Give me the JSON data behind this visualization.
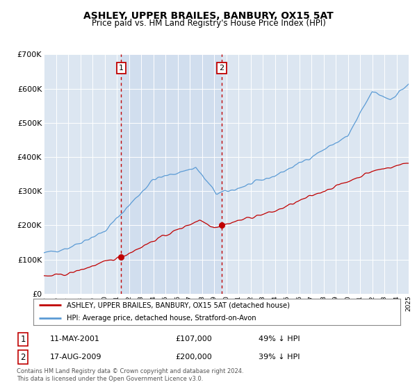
{
  "title": "ASHLEY, UPPER BRAILES, BANBURY, OX15 5AT",
  "subtitle": "Price paid vs. HM Land Registry's House Price Index (HPI)",
  "ylim": [
    0,
    700000
  ],
  "yticks": [
    0,
    100000,
    200000,
    300000,
    400000,
    500000,
    600000,
    700000
  ],
  "ytick_labels": [
    "£0",
    "£100K",
    "£200K",
    "£300K",
    "£400K",
    "£500K",
    "£600K",
    "£700K"
  ],
  "hpi_color": "#5b9bd5",
  "price_color": "#c00000",
  "shade_color": "#dce6f1",
  "marker1_year": 2001.36,
  "marker1_price": 107000,
  "marker1_label": "1",
  "marker1_date": "11-MAY-2001",
  "marker1_hpi_pct": "49% ↓ HPI",
  "marker2_year": 2009.63,
  "marker2_price": 200000,
  "marker2_label": "2",
  "marker2_date": "17-AUG-2009",
  "marker2_hpi_pct": "39% ↓ HPI",
  "legend_line1": "ASHLEY, UPPER BRAILES, BANBURY, OX15 5AT (detached house)",
  "legend_line2": "HPI: Average price, detached house, Stratford-on-Avon",
  "footer_line1": "Contains HM Land Registry data © Crown copyright and database right 2024.",
  "footer_line2": "This data is licensed under the Open Government Licence v3.0.",
  "background_color": "#ffffff",
  "plot_bg_color": "#dce6f1"
}
